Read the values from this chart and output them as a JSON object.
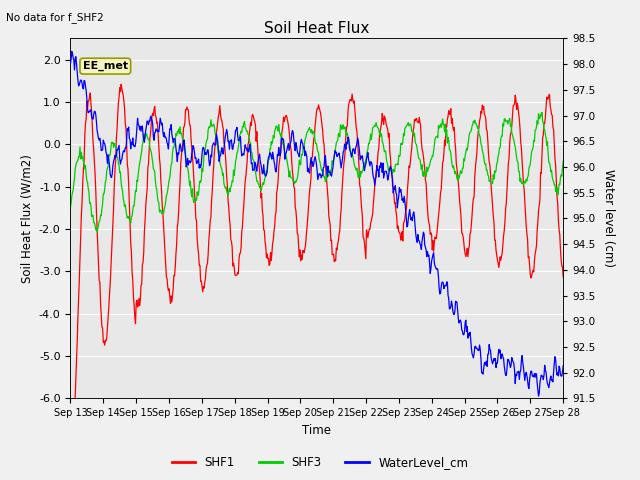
{
  "title": "Soil Heat Flux",
  "top_left_text": "No data for f_SHF2",
  "annotation_text": "EE_met",
  "xlabel": "Time",
  "ylabel_left": "Soil Heat Flux (W/m2)",
  "ylabel_right": "Water level (cm)",
  "ylim_left": [
    -6.0,
    2.5
  ],
  "ylim_right": [
    91.5,
    98.5
  ],
  "yticks_left": [
    -6.0,
    -5.0,
    -4.0,
    -3.0,
    -2.0,
    -1.0,
    0.0,
    1.0,
    2.0
  ],
  "yticks_right": [
    91.5,
    92.0,
    92.5,
    93.0,
    93.5,
    94.0,
    94.5,
    95.0,
    95.5,
    96.0,
    96.5,
    97.0,
    97.5,
    98.0,
    98.5
  ],
  "x_tick_labels": [
    "Sep 13",
    "Sep 14",
    "Sep 15",
    "Sep 16",
    "Sep 17",
    "Sep 18",
    "Sep 19",
    "Sep 20",
    "Sep 21",
    "Sep 22",
    "Sep 23",
    "Sep 24",
    "Sep 25",
    "Sep 26",
    "Sep 27",
    "Sep 28"
  ],
  "color_shf1": "#ff0000",
  "color_shf3": "#00cc00",
  "color_water": "#0000ff",
  "background_color": "#e8e8e8",
  "grid_color": "#ffffff",
  "legend_entries": [
    "SHF1",
    "SHF3",
    "WaterLevel_cm"
  ],
  "annotation_box_facecolor": "#f5f5c0",
  "annotation_box_edgecolor": "#999900",
  "fig_width": 6.4,
  "fig_height": 4.8,
  "dpi": 100
}
